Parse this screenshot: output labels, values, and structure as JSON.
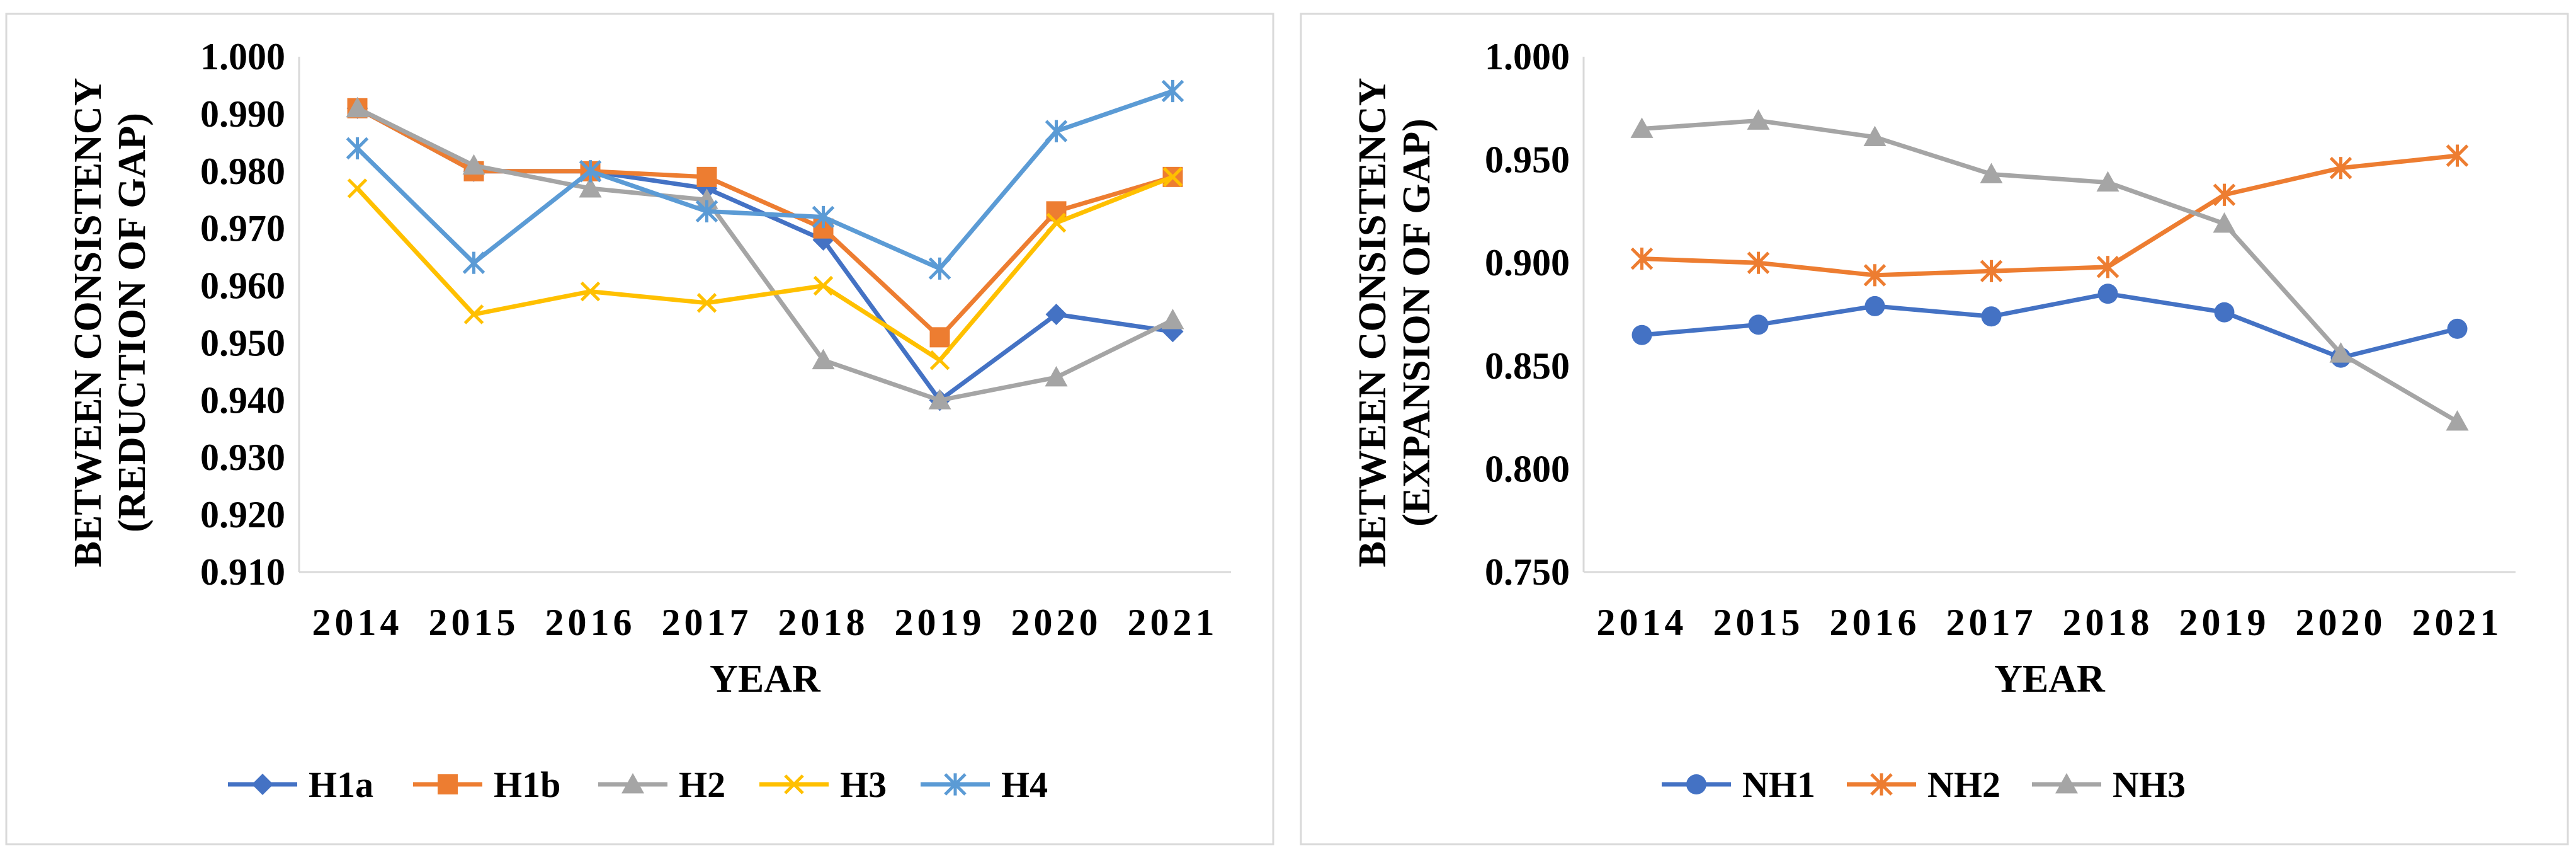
{
  "chart_data": [
    {
      "type": "line",
      "ylabel_line1": "BETWEEN CONSISTENCY",
      "ylabel_line2": "(REDUCTION OF  GAP)",
      "xlabel": "YEAR",
      "ylim": [
        0.91,
        1.0
      ],
      "ytick_step": 0.01,
      "ytick_labels": [
        "0.910",
        "0.920",
        "0.930",
        "0.940",
        "0.950",
        "0.960",
        "0.970",
        "0.980",
        "0.990",
        "1.000"
      ],
      "grid": false,
      "legend": "bottom",
      "categories": [
        "2014",
        "2015",
        "2016",
        "2017",
        "2018",
        "2019",
        "2020",
        "2021"
      ],
      "series": [
        {
          "name": "H1a",
          "color": "#4472C4",
          "marker": "diamond",
          "values": [
            0.991,
            0.98,
            0.98,
            0.977,
            0.968,
            0.94,
            0.955,
            0.952
          ]
        },
        {
          "name": "H1b",
          "color": "#ED7D31",
          "marker": "square",
          "values": [
            0.991,
            0.98,
            0.98,
            0.979,
            0.97,
            0.951,
            0.973,
            0.979
          ]
        },
        {
          "name": "H2",
          "color": "#A5A5A5",
          "marker": "triangle",
          "values": [
            0.991,
            0.981,
            0.977,
            0.975,
            0.947,
            0.94,
            0.944,
            0.954
          ]
        },
        {
          "name": "H3",
          "color": "#FFC000",
          "marker": "x",
          "values": [
            0.977,
            0.955,
            0.959,
            0.957,
            0.96,
            0.947,
            0.971,
            0.979
          ]
        },
        {
          "name": "H4",
          "color": "#5B9BD5",
          "marker": "star",
          "values": [
            0.984,
            0.964,
            0.98,
            0.973,
            0.972,
            0.963,
            0.987,
            0.994
          ]
        }
      ]
    },
    {
      "type": "line",
      "ylabel_line1": "BETWEEN CONSISTENCY",
      "ylabel_line2": "(EXPANSION OF  GAP)",
      "xlabel": "YEAR",
      "ylim": [
        0.75,
        1.0
      ],
      "ytick_step": 0.05,
      "ytick_labels": [
        "0.750",
        "0.800",
        "0.850",
        "0.900",
        "0.950",
        "1.000"
      ],
      "grid": false,
      "legend": "bottom",
      "categories": [
        "2014",
        "2015",
        "2016",
        "2017",
        "2018",
        "2019",
        "2020",
        "2021"
      ],
      "series": [
        {
          "name": "NH1",
          "color": "#4472C4",
          "marker": "circle",
          "values": [
            0.865,
            0.87,
            0.879,
            0.874,
            0.885,
            0.876,
            0.854,
            0.868
          ]
        },
        {
          "name": "NH2",
          "color": "#ED7D31",
          "marker": "star",
          "values": [
            0.902,
            0.9,
            0.894,
            0.896,
            0.898,
            0.933,
            0.946,
            0.952
          ]
        },
        {
          "name": "NH3",
          "color": "#A5A5A5",
          "marker": "triangle",
          "values": [
            0.965,
            0.969,
            0.961,
            0.943,
            0.939,
            0.919,
            0.856,
            0.823
          ]
        }
      ]
    }
  ]
}
